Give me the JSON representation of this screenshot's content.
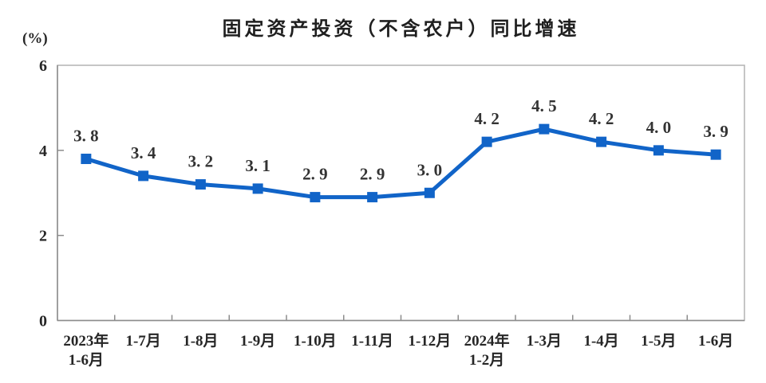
{
  "page": {
    "background_color": "#ffffff"
  },
  "chart_data": {
    "type": "line",
    "title": "固定资产投资（不含农户）同比增速",
    "unit_label": "(%)",
    "categories": [
      [
        "2023年",
        "1-6月"
      ],
      [
        "1-7月"
      ],
      [
        "1-8月"
      ],
      [
        "1-9月"
      ],
      [
        "1-10月"
      ],
      [
        "1-11月"
      ],
      [
        "1-12月"
      ],
      [
        "2024年",
        "1-2月"
      ],
      [
        "1-3月"
      ],
      [
        "1-4月"
      ],
      [
        "1-5月"
      ],
      [
        "1-6月"
      ]
    ],
    "values": [
      3.8,
      3.4,
      3.2,
      3.1,
      2.9,
      2.9,
      3.0,
      4.2,
      4.5,
      4.2,
      4.0,
      3.9
    ],
    "point_labels": [
      "3. 8",
      "3. 4",
      "3. 2",
      "3. 1",
      "2. 9",
      "2. 9",
      "3. 0",
      "4. 2",
      "4. 5",
      "4. 2",
      "4. 0",
      "3. 9"
    ],
    "ylim": [
      0,
      6
    ],
    "yticks": [
      0,
      2,
      4,
      6
    ],
    "grid": false,
    "legend": "none",
    "marker": "square",
    "line_color": "#1164c8",
    "text_color": "#262626",
    "point_label_color": "#333333",
    "axis_color": "#8c8c8c",
    "border_color": "#b3b3b3"
  }
}
